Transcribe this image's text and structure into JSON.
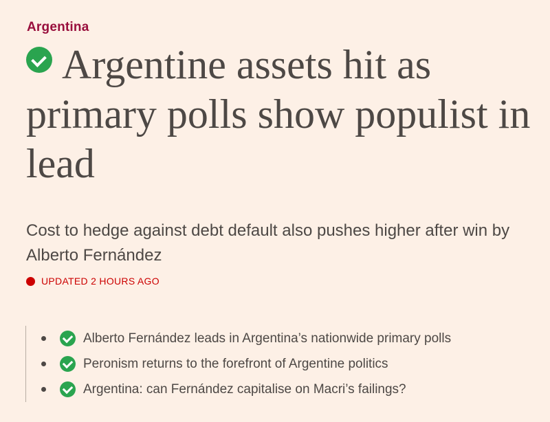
{
  "topic": "Argentina",
  "headline": "Argentine assets hit as primary polls show populist in lead",
  "standfirst": "Cost to hedge against debt default also pushes higher after win by Alberto Fernández",
  "updated": "UPDATED 2 HOURS AGO",
  "icons": {
    "headline": "check-circle-icon",
    "updated": "red-dot-icon",
    "related": "check-circle-icon"
  },
  "colors": {
    "background": "#fdf0e6",
    "topic": "#990f3d",
    "check": "#2aa44f",
    "updated": "#cc0000"
  },
  "related": [
    {
      "title": "Alberto Fernández leads in Argentina’s nationwide primary polls"
    },
    {
      "title": "Peronism returns to the forefront of Argentine politics"
    },
    {
      "title": "Argentina: can Fernández capitalise on Macri’s failings?"
    }
  ]
}
